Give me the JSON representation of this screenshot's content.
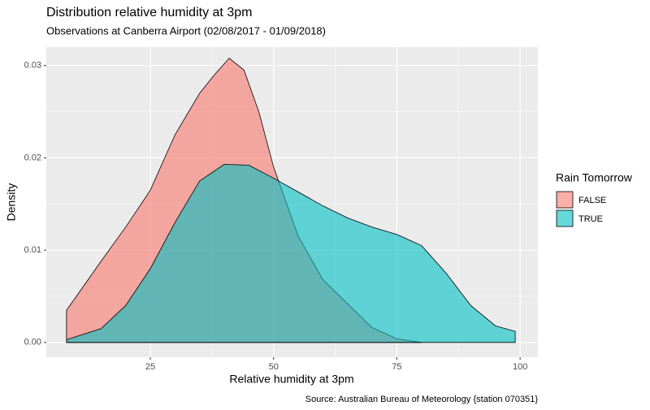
{
  "chart_data": {
    "type": "density",
    "title": "Distribution relative humidity at 3pm",
    "subtitle": "Observations at Canberra Airport (02/08/2017 - 01/09/2018)",
    "x_label": "Relative humidity at 3pm",
    "y_label": "Density",
    "caption": "Source: Australian Bureau of Meteorology {station 070351}",
    "legend_title": "Rain Tomorrow",
    "legend_position": "right",
    "grid": true,
    "xlim": [
      3.9,
      103.6
    ],
    "ylim": [
      -0.0016,
      0.032
    ],
    "xticks": [
      25,
      50,
      75,
      100
    ],
    "yticks": [
      {
        "value": 0,
        "label": "0.00"
      },
      0.01,
      0.02,
      0.03
    ],
    "series": [
      {
        "name": "FALSE",
        "color": "#F8766D",
        "x": [
          8,
          10,
          15,
          20,
          25,
          30,
          35,
          38,
          41,
          44,
          47,
          50,
          55,
          60,
          65,
          70,
          75,
          80
        ],
        "values": [
          0.0035,
          0.005,
          0.0088,
          0.0125,
          0.0165,
          0.0225,
          0.027,
          0.029,
          0.0308,
          0.0295,
          0.025,
          0.019,
          0.0115,
          0.0068,
          0.0042,
          0.0016,
          0.0004,
          0
        ]
      },
      {
        "name": "TRUE",
        "color": "#00BFC4",
        "x": [
          8,
          15,
          20,
          25,
          30,
          35,
          40,
          45,
          50,
          55,
          60,
          65,
          70,
          75,
          80,
          85,
          90,
          95,
          99
        ],
        "values": [
          0.0003,
          0.0015,
          0.004,
          0.008,
          0.013,
          0.0175,
          0.0193,
          0.0192,
          0.0178,
          0.0163,
          0.0148,
          0.0135,
          0.0125,
          0.0117,
          0.0105,
          0.0075,
          0.004,
          0.0018,
          0.0012
        ]
      }
    ]
  }
}
